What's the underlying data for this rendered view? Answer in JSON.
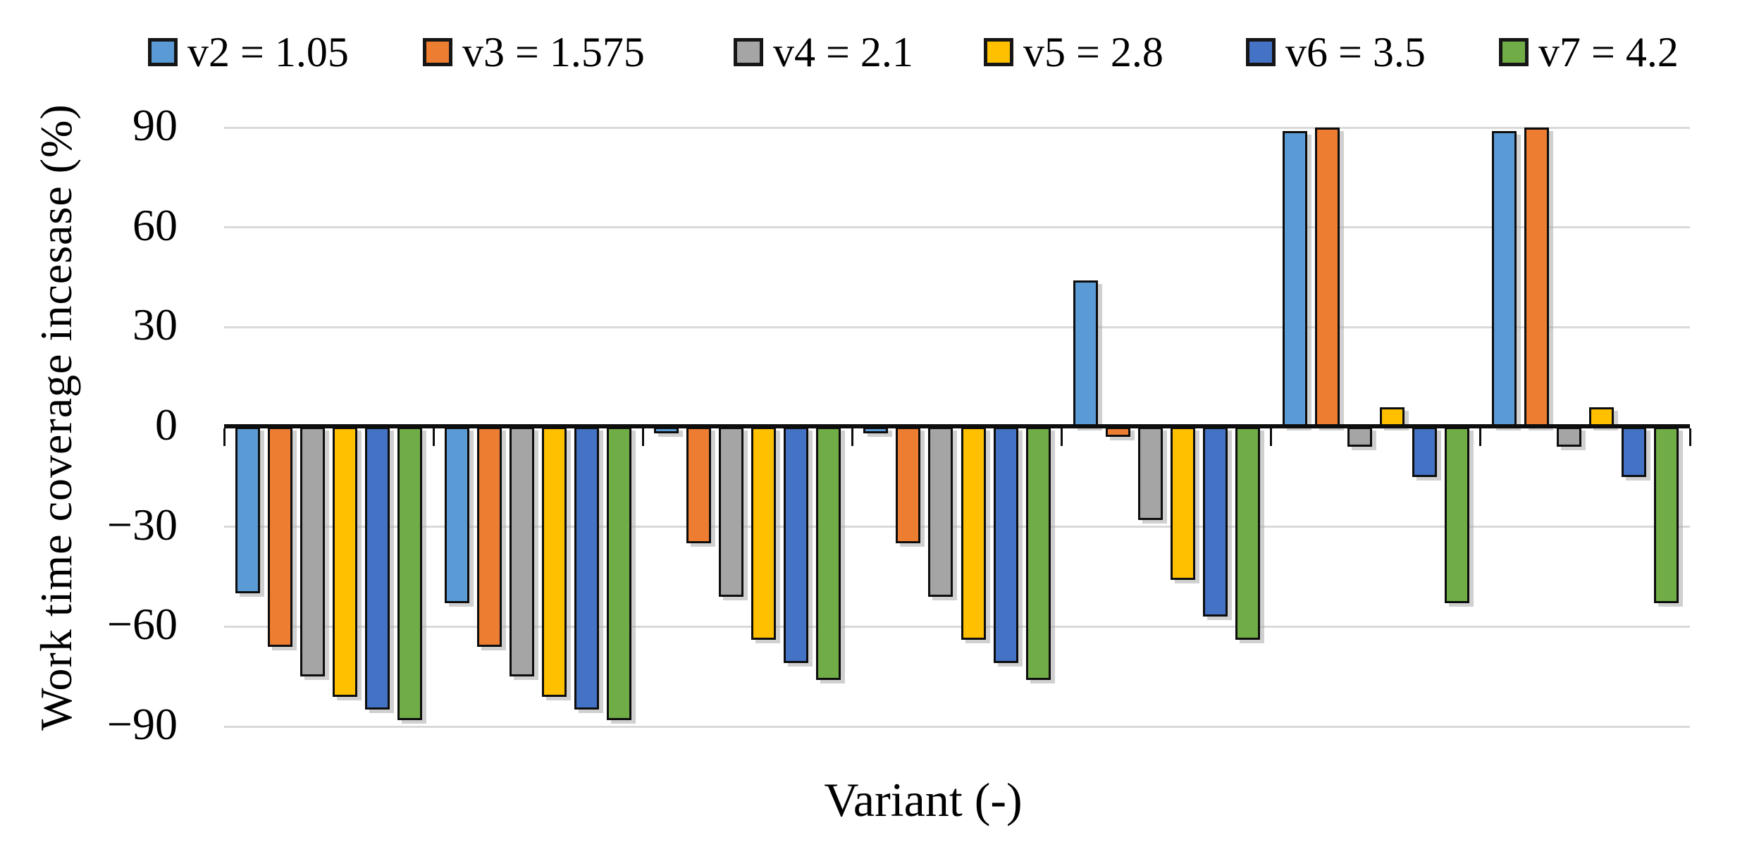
{
  "chart_data": {
    "type": "bar",
    "title": "",
    "xlabel": "Variant (-)",
    "ylabel": "Work time coverage incesase (%)",
    "ylim": [
      -90,
      90
    ],
    "ytick_interval": 30,
    "yticks": [
      90,
      60,
      30,
      0,
      -30,
      -60,
      -90
    ],
    "ytick_labels": [
      "90",
      "60",
      "30",
      "0",
      "−30",
      "−60",
      "−90"
    ],
    "n_groups": 7,
    "category_axis_labels_visible": false,
    "grid": "horizontal-light-gray",
    "legend_position": "top",
    "series": [
      {
        "name": "v2 = 1.05",
        "color": "#5B9BD5",
        "values": [
          -50,
          -53,
          -2,
          -2,
          44,
          89,
          89
        ]
      },
      {
        "name": "v3 = 1.575",
        "color": "#ED7D31",
        "values": [
          -66,
          -66,
          -35,
          -35,
          -3,
          90,
          90
        ]
      },
      {
        "name": "v4 = 2.1",
        "color": "#A5A5A5",
        "values": [
          -75,
          -75,
          -51,
          -51,
          -28,
          -6,
          -6
        ]
      },
      {
        "name": "v5 = 2.8",
        "color": "#FFC000",
        "values": [
          -81,
          -81,
          -64,
          -64,
          -46,
          6,
          6
        ]
      },
      {
        "name": "v6 = 3.5",
        "color": "#4472C4",
        "values": [
          -85,
          -85,
          -71,
          -71,
          -57,
          -15,
          -15
        ]
      },
      {
        "name": "v7 = 4.2",
        "color": "#70AD47",
        "values": [
          -88,
          -88,
          -76,
          -76,
          -64,
          -53,
          -53
        ]
      }
    ],
    "colors": {
      "gridline": "#d9d9d9",
      "axis_line": "#0d0d0d",
      "bar_outline": "#0d0d0d"
    }
  }
}
